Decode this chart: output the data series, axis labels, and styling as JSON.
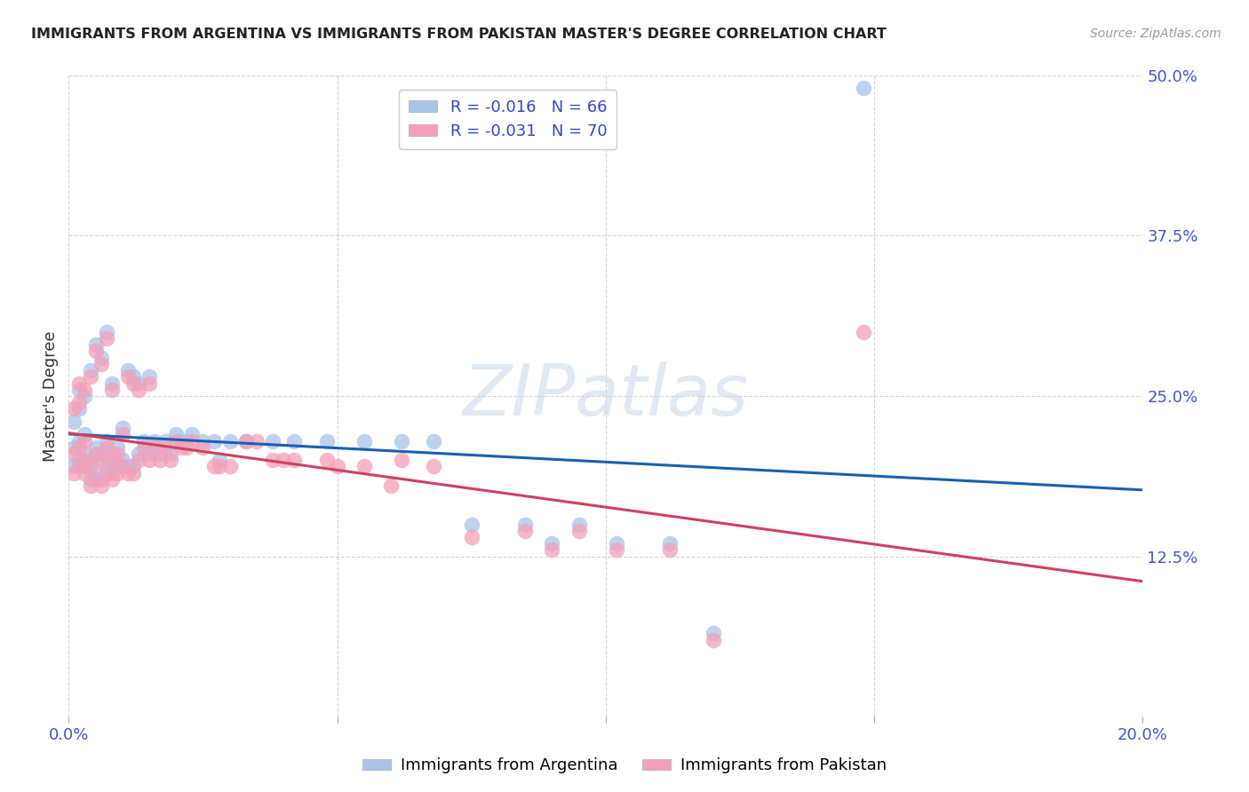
{
  "title": "IMMIGRANTS FROM ARGENTINA VS IMMIGRANTS FROM PAKISTAN MASTER'S DEGREE CORRELATION CHART",
  "source": "Source: ZipAtlas.com",
  "ylabel": "Master's Degree",
  "legend_label1": "Immigrants from Argentina",
  "legend_label2": "Immigrants from Pakistan",
  "R1": -0.016,
  "N1": 66,
  "R2": -0.031,
  "N2": 70,
  "color1": "#aac4e8",
  "color2": "#f4a0b8",
  "line_color1": "#1a5fb4",
  "line_color2": "#d04060",
  "xlim": [
    0.0,
    0.2
  ],
  "ylim": [
    0.0,
    0.5
  ],
  "xticks": [
    0.0,
    0.05,
    0.1,
    0.15,
    0.2
  ],
  "yticks": [
    0.0,
    0.125,
    0.25,
    0.375,
    0.5
  ],
  "grid_color": "#cccccc",
  "background_color": "#ffffff",
  "scatter1_x": [
    0.001,
    0.001,
    0.001,
    0.002,
    0.002,
    0.002,
    0.002,
    0.003,
    0.003,
    0.003,
    0.003,
    0.004,
    0.004,
    0.004,
    0.005,
    0.005,
    0.005,
    0.006,
    0.006,
    0.006,
    0.007,
    0.007,
    0.007,
    0.008,
    0.008,
    0.008,
    0.009,
    0.009,
    0.01,
    0.01,
    0.011,
    0.011,
    0.012,
    0.012,
    0.013,
    0.013,
    0.014,
    0.015,
    0.015,
    0.016,
    0.017,
    0.018,
    0.019,
    0.02,
    0.021,
    0.022,
    0.023,
    0.025,
    0.027,
    0.03,
    0.033,
    0.038,
    0.042,
    0.048,
    0.055,
    0.062,
    0.068,
    0.075,
    0.085,
    0.095,
    0.102,
    0.112,
    0.12,
    0.09,
    0.148,
    0.028
  ],
  "scatter1_y": [
    0.195,
    0.21,
    0.23,
    0.2,
    0.215,
    0.24,
    0.255,
    0.195,
    0.205,
    0.22,
    0.25,
    0.185,
    0.2,
    0.27,
    0.19,
    0.21,
    0.29,
    0.185,
    0.205,
    0.28,
    0.195,
    0.215,
    0.3,
    0.19,
    0.205,
    0.26,
    0.195,
    0.21,
    0.2,
    0.225,
    0.195,
    0.27,
    0.195,
    0.265,
    0.205,
    0.26,
    0.215,
    0.205,
    0.265,
    0.215,
    0.205,
    0.215,
    0.205,
    0.22,
    0.215,
    0.215,
    0.22,
    0.215,
    0.215,
    0.215,
    0.215,
    0.215,
    0.215,
    0.215,
    0.215,
    0.215,
    0.215,
    0.15,
    0.15,
    0.15,
    0.135,
    0.135,
    0.065,
    0.135,
    0.49,
    0.2
  ],
  "scatter2_x": [
    0.001,
    0.001,
    0.001,
    0.002,
    0.002,
    0.002,
    0.002,
    0.003,
    0.003,
    0.003,
    0.003,
    0.004,
    0.004,
    0.004,
    0.005,
    0.005,
    0.005,
    0.006,
    0.006,
    0.006,
    0.007,
    0.007,
    0.007,
    0.008,
    0.008,
    0.008,
    0.009,
    0.009,
    0.01,
    0.01,
    0.011,
    0.011,
    0.012,
    0.012,
    0.013,
    0.013,
    0.014,
    0.015,
    0.015,
    0.016,
    0.017,
    0.018,
    0.019,
    0.02,
    0.021,
    0.022,
    0.023,
    0.025,
    0.027,
    0.03,
    0.033,
    0.038,
    0.042,
    0.048,
    0.055,
    0.062,
    0.068,
    0.075,
    0.085,
    0.095,
    0.102,
    0.112,
    0.12,
    0.09,
    0.148,
    0.028,
    0.035,
    0.04,
    0.05,
    0.06
  ],
  "scatter2_y": [
    0.19,
    0.205,
    0.24,
    0.195,
    0.21,
    0.245,
    0.26,
    0.19,
    0.2,
    0.215,
    0.255,
    0.18,
    0.195,
    0.265,
    0.185,
    0.205,
    0.285,
    0.18,
    0.2,
    0.275,
    0.19,
    0.21,
    0.295,
    0.185,
    0.2,
    0.255,
    0.19,
    0.205,
    0.195,
    0.22,
    0.19,
    0.265,
    0.19,
    0.26,
    0.2,
    0.255,
    0.21,
    0.2,
    0.26,
    0.21,
    0.2,
    0.21,
    0.2,
    0.215,
    0.21,
    0.21,
    0.215,
    0.21,
    0.195,
    0.195,
    0.215,
    0.2,
    0.2,
    0.2,
    0.195,
    0.2,
    0.195,
    0.14,
    0.145,
    0.145,
    0.13,
    0.13,
    0.06,
    0.13,
    0.3,
    0.195,
    0.215,
    0.2,
    0.195,
    0.18
  ]
}
